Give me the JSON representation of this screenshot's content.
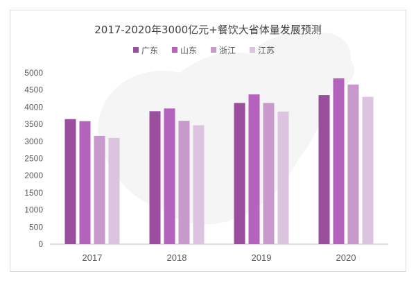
{
  "chart_data": {
    "type": "bar",
    "title": "2017-2020年3000亿元+餐饮大省体量发展预测",
    "xlabel": "",
    "ylabel": "",
    "categories": [
      "2017",
      "2018",
      "2019",
      "2020"
    ],
    "series": [
      {
        "name": "广东",
        "color": "#9b4e9d",
        "values": [
          3650,
          3880,
          4120,
          4350
        ]
      },
      {
        "name": "山东",
        "color": "#b562bf",
        "values": [
          3590,
          3960,
          4370,
          4840
        ]
      },
      {
        "name": "浙江",
        "color": "#c79acb",
        "values": [
          3160,
          3600,
          4120,
          4660
        ]
      },
      {
        "name": "江苏",
        "color": "#dcc3df",
        "values": [
          3100,
          3470,
          3870,
          4300
        ]
      }
    ],
    "ylim": [
      0,
      5000
    ],
    "yticks": [
      0,
      500,
      1000,
      1500,
      2000,
      2500,
      3000,
      3500,
      4000,
      4500,
      5000
    ],
    "grid": false,
    "legend_position": "top-center",
    "background": "faint map of China behind the bars"
  }
}
